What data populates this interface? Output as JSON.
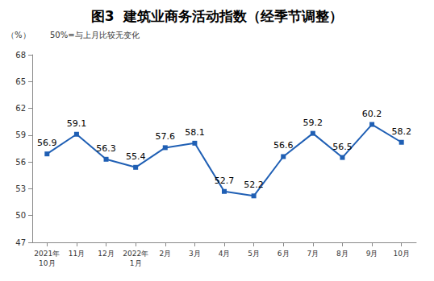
{
  "chart_data": {
    "type": "line",
    "title": "图3  建筑业商务活动指数（经季节调整）",
    "ylabel": "（%）",
    "annotations": [
      "50%=与上月比较无变化"
    ],
    "categories": [
      "2021年\n10月",
      "11月",
      "12月",
      "2022年\n1月",
      "2月",
      "3月",
      "4月",
      "5月",
      "6月",
      "7月",
      "8月",
      "9月",
      "10月"
    ],
    "values": [
      56.9,
      59.1,
      56.3,
      55.4,
      57.6,
      58.1,
      52.7,
      52.2,
      56.6,
      59.2,
      56.5,
      60.2,
      58.2
    ],
    "color": "#1f5fb4",
    "marker": "square",
    "ylim": [
      47,
      68
    ],
    "yticks": [
      47,
      50,
      53,
      56,
      59,
      62,
      65,
      68
    ],
    "grid": false,
    "data_labels": true
  }
}
